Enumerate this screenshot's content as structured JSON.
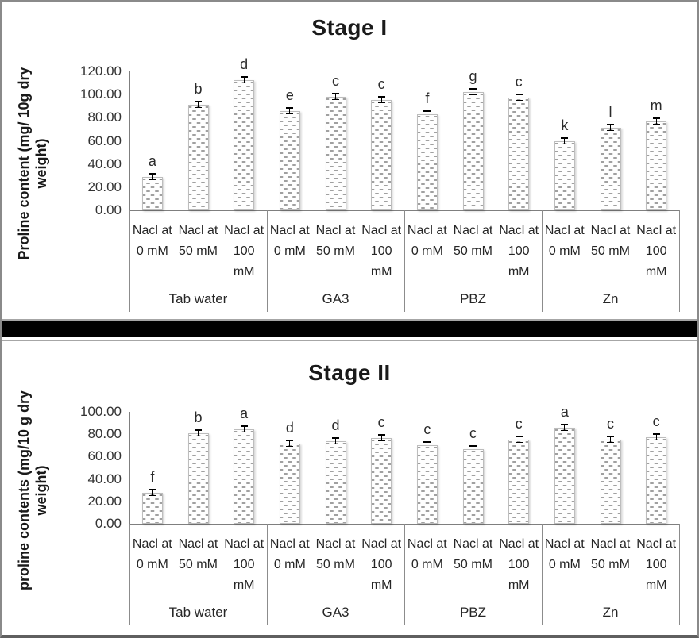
{
  "page": {
    "background": "#ffffff",
    "outer_border_color": "#8a8a8a",
    "divider_color": "#000000",
    "panel_border_color": "#a6a6a6"
  },
  "colors": {
    "bar_fill": "#ffffff",
    "bar_pattern": "#a0a0a0",
    "bar_border": "#bdbdbd",
    "axis": "#7f7f7f",
    "text": "#262626",
    "error_bar": "#000000"
  },
  "chart_data": [
    {
      "type": "bar",
      "title": "Stage I",
      "ylabel": "Proline content (mg/ 10g dry weight)",
      "ylabel_lines": [
        "Proline content (mg/ 10g dry",
        "weight)"
      ],
      "ymax": 120,
      "ystep": 20,
      "ylim": [
        0,
        120
      ],
      "grid": false,
      "legend": false,
      "yticks": [
        "120.00",
        "100.00",
        "80.00",
        "60.00",
        "40.00",
        "20.00",
        "0.00"
      ],
      "groups": [
        {
          "label": "Tab water",
          "bars": [
            {
              "label": "Nacl at 0 mM",
              "value": 29.0,
              "letter": "a"
            },
            {
              "label": "Nacl at 50 mM",
              "value": 91.0,
              "letter": "b"
            },
            {
              "label": "Nacl at 100 mM",
              "value": 112.5,
              "letter": "d"
            }
          ]
        },
        {
          "label": "GA3",
          "bars": [
            {
              "label": "Nacl at 0 mM",
              "value": 86.0,
              "letter": "e"
            },
            {
              "label": "Nacl at 50 mM",
              "value": 98.0,
              "letter": "c"
            },
            {
              "label": "Nacl at 100 mM",
              "value": 95.5,
              "letter": "c"
            }
          ]
        },
        {
          "label": "PBZ",
          "bars": [
            {
              "label": "Nacl at 0 mM",
              "value": 83.0,
              "letter": "f"
            },
            {
              "label": "Nacl at 50 mM",
              "value": 102.5,
              "letter": "g"
            },
            {
              "label": "Nacl at 100 mM",
              "value": 97.5,
              "letter": "c"
            }
          ]
        },
        {
          "label": "Zn",
          "bars": [
            {
              "label": "Nacl at 0 mM",
              "value": 60.0,
              "letter": "k"
            },
            {
              "label": "Nacl at 50 mM",
              "value": 71.5,
              "letter": "l"
            },
            {
              "label": "Nacl at 100 mM",
              "value": 76.5,
              "letter": "m"
            }
          ]
        }
      ]
    },
    {
      "type": "bar",
      "title": "Stage II",
      "ylabel": "proline contents (mg/10 g dry weight)",
      "ylabel_lines": [
        "proline contents (mg/10 g dry",
        "weight)"
      ],
      "ymax": 100,
      "ystep": 20,
      "ylim": [
        0,
        100
      ],
      "grid": false,
      "legend": false,
      "yticks": [
        "100.00",
        "80.00",
        "60.00",
        "40.00",
        "20.00",
        "0.00"
      ],
      "groups": [
        {
          "label": "Tab water",
          "bars": [
            {
              "label": "Nacl at 0 mM",
              "value": 28.0,
              "letter": "f"
            },
            {
              "label": "Nacl at 50 mM",
              "value": 80.5,
              "letter": "b"
            },
            {
              "label": "Nacl at 100 mM",
              "value": 84.5,
              "letter": "a"
            }
          ]
        },
        {
          "label": "GA3",
          "bars": [
            {
              "label": "Nacl at 0 mM",
              "value": 71.5,
              "letter": "d"
            },
            {
              "label": "Nacl at 50 mM",
              "value": 74.0,
              "letter": "d"
            },
            {
              "label": "Nacl at 100 mM",
              "value": 76.5,
              "letter": "c"
            }
          ]
        },
        {
          "label": "PBZ",
          "bars": [
            {
              "label": "Nacl at 0 mM",
              "value": 70.5,
              "letter": "c"
            },
            {
              "label": "Nacl at 50 mM",
              "value": 66.5,
              "letter": "c"
            },
            {
              "label": "Nacl at 100 mM",
              "value": 75.5,
              "letter": "c"
            }
          ]
        },
        {
          "label": "Zn",
          "bars": [
            {
              "label": "Nacl at 0 mM",
              "value": 85.5,
              "letter": "a"
            },
            {
              "label": "Nacl at 50 mM",
              "value": 75.0,
              "letter": "c"
            },
            {
              "label": "Nacl at 100 mM",
              "value": 77.0,
              "letter": "c"
            }
          ]
        }
      ]
    }
  ]
}
